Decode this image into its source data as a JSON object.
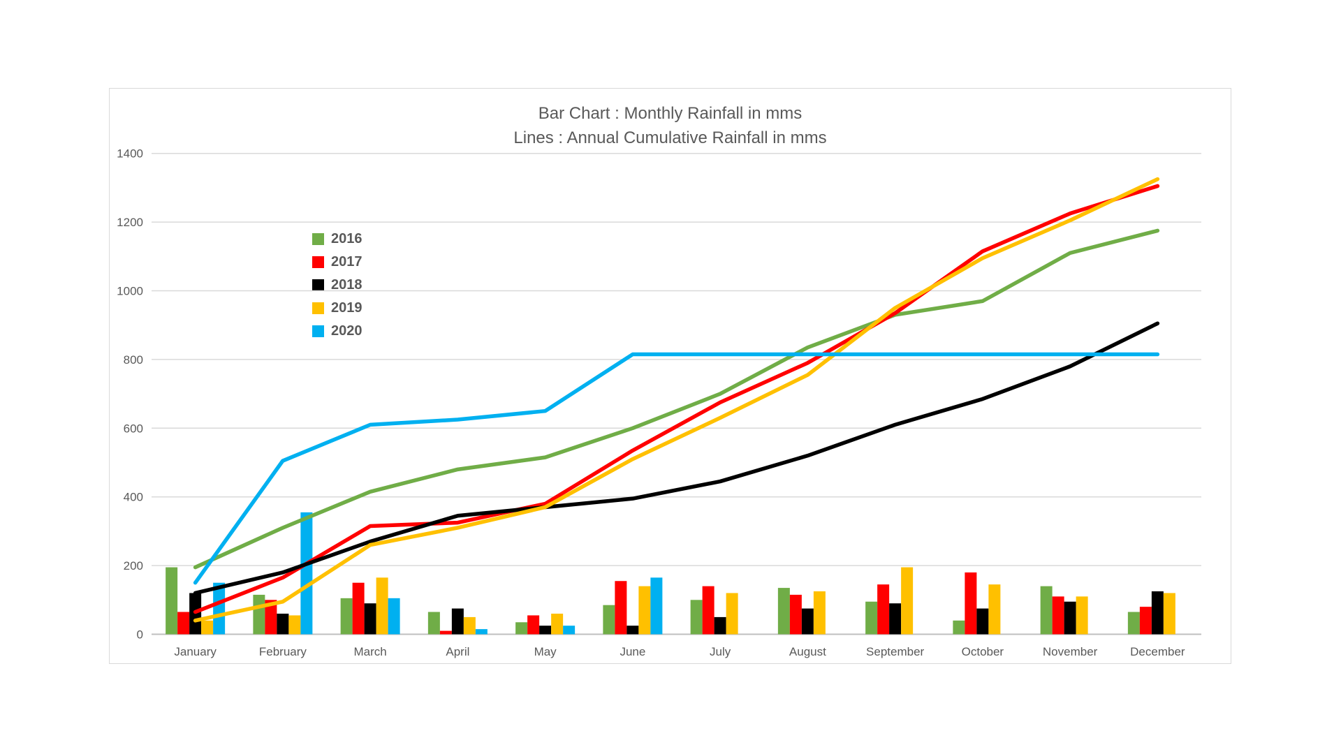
{
  "chart": {
    "title_line1": "Bar Chart : Monthly Rainfall in mms",
    "title_line2": "Lines : Annual Cumulative Rainfall in mms"
  },
  "chart_data": {
    "type": "bar",
    "subtype": "combo-bar-line",
    "title": "Bar Chart : Monthly Rainfall in mms / Lines : Annual Cumulative Rainfall in mms",
    "bars_meaning": "Monthly Rainfall in mms",
    "lines_meaning": "Annual Cumulative Rainfall in mms",
    "categories": [
      "January",
      "February",
      "March",
      "April",
      "May",
      "June",
      "July",
      "August",
      "September",
      "October",
      "November",
      "December"
    ],
    "series": [
      {
        "name": "2016",
        "color": "#70AD47",
        "monthly": [
          195,
          115,
          105,
          65,
          35,
          85,
          100,
          135,
          95,
          40,
          140,
          65
        ],
        "cumulative": [
          195,
          310,
          415,
          480,
          515,
          600,
          700,
          835,
          930,
          970,
          1110,
          1175
        ]
      },
      {
        "name": "2017",
        "color": "#FF0000",
        "monthly": [
          65,
          100,
          150,
          10,
          55,
          155,
          140,
          115,
          145,
          180,
          110,
          80
        ],
        "cumulative": [
          65,
          165,
          315,
          325,
          380,
          535,
          675,
          790,
          935,
          1115,
          1225,
          1305
        ]
      },
      {
        "name": "2018",
        "color": "#000000",
        "monthly": [
          120,
          60,
          90,
          75,
          25,
          25,
          50,
          75,
          90,
          75,
          95,
          125
        ],
        "cumulative": [
          120,
          180,
          270,
          345,
          370,
          395,
          445,
          520,
          610,
          685,
          780,
          905
        ]
      },
      {
        "name": "2019",
        "color": "#FFC000",
        "monthly": [
          40,
          55,
          165,
          50,
          60,
          140,
          120,
          125,
          195,
          145,
          110,
          120
        ],
        "cumulative": [
          40,
          95,
          260,
          310,
          370,
          510,
          630,
          755,
          950,
          1095,
          1205,
          1325
        ]
      },
      {
        "name": "2020",
        "color": "#00B0F0",
        "monthly": [
          150,
          355,
          105,
          15,
          25,
          165,
          0,
          0,
          0,
          0,
          0,
          0
        ],
        "cumulative": [
          150,
          505,
          610,
          625,
          650,
          815,
          815,
          815,
          815,
          815,
          815,
          815
        ]
      }
    ],
    "y_axis": {
      "min": 0,
      "max": 1400,
      "step": 200,
      "tick_labels": [
        "0",
        "200",
        "400",
        "600",
        "800",
        "1000",
        "1200",
        "1400"
      ]
    },
    "legend_position": "inside-upper-left",
    "legend_entries": [
      "2016",
      "2017",
      "2018",
      "2019",
      "2020"
    ],
    "grid": true,
    "grid_color": "#D9D9D9",
    "axis_color": "#BFBFBF",
    "text_color": "#595959"
  }
}
